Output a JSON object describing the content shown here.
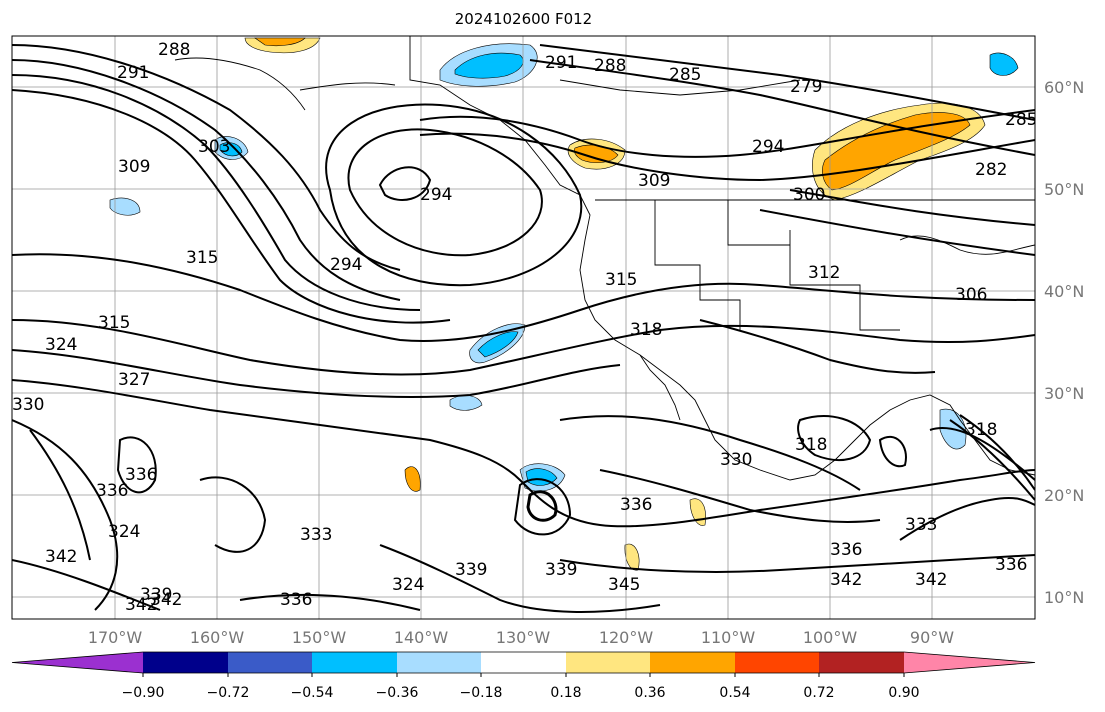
{
  "title": "2024102600 F012",
  "longitude_labels": [
    "170°W",
    "160°W",
    "150°W",
    "140°W",
    "130°W",
    "120°W",
    "110°W",
    "100°W",
    "90°W"
  ],
  "latitude_labels": [
    "60°N",
    "50°N",
    "40°N",
    "30°N",
    "20°N",
    "10°N"
  ],
  "colorbar": {
    "ticks": [
      "−0.90",
      "−0.72",
      "−0.54",
      "−0.36",
      "−0.18",
      "0.18",
      "0.36",
      "0.54",
      "0.72",
      "0.90"
    ],
    "colors": [
      "#9b30d0",
      "#00008b",
      "#3a5bc8",
      "#00bfff",
      "#a8ddff",
      "#ffffff",
      "#ffe680",
      "#ffa500",
      "#ff4500",
      "#b22222",
      "#ff85a8"
    ]
  },
  "contour_labels": [
    {
      "text": "288"
    },
    {
      "text": "291"
    },
    {
      "text": "288"
    },
    {
      "text": "285"
    },
    {
      "text": "279"
    },
    {
      "text": "285"
    },
    {
      "text": "291"
    },
    {
      "text": "309"
    },
    {
      "text": "303"
    },
    {
      "text": "294"
    },
    {
      "text": "294"
    },
    {
      "text": "282"
    },
    {
      "text": "309"
    },
    {
      "text": "300"
    },
    {
      "text": "315"
    },
    {
      "text": "294"
    },
    {
      "text": "315"
    },
    {
      "text": "312"
    },
    {
      "text": "306"
    },
    {
      "text": "315"
    },
    {
      "text": "318"
    },
    {
      "text": "324"
    },
    {
      "text": "327"
    },
    {
      "text": "330"
    },
    {
      "text": "336"
    },
    {
      "text": "336"
    },
    {
      "text": "330"
    },
    {
      "text": "318"
    },
    {
      "text": "318"
    },
    {
      "text": "324"
    },
    {
      "text": "336"
    },
    {
      "text": "333"
    },
    {
      "text": "333"
    },
    {
      "text": "342"
    },
    {
      "text": "339"
    },
    {
      "text": "342"
    },
    {
      "text": "336"
    },
    {
      "text": "324"
    },
    {
      "text": "339"
    },
    {
      "text": "345"
    },
    {
      "text": "336"
    },
    {
      "text": "342"
    },
    {
      "text": "342"
    },
    {
      "text": "339"
    },
    {
      "text": "336"
    },
    {
      "text": "342"
    }
  ]
}
